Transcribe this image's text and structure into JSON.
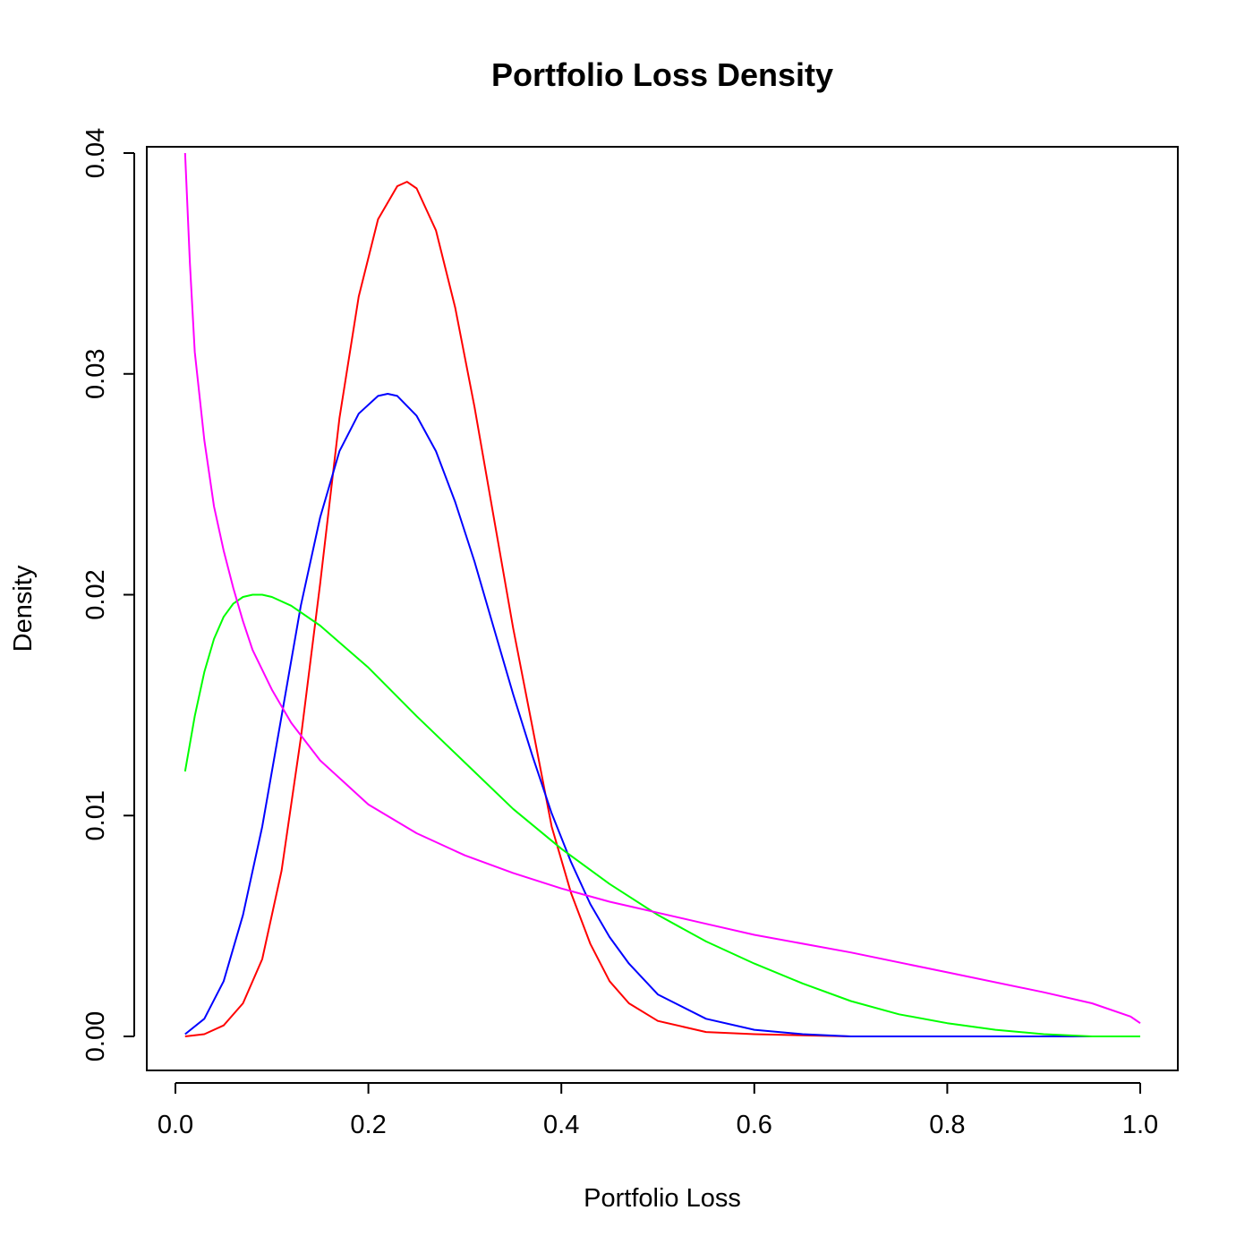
{
  "chart_data": {
    "type": "line",
    "title": "Portfolio Loss Density",
    "xlabel": "Portfolio Loss",
    "ylabel": "Density",
    "xlim": [
      0.0,
      1.0
    ],
    "ylim": [
      0.0,
      0.04
    ],
    "x_ticks": [
      "0.0",
      "0.2",
      "0.4",
      "0.6",
      "0.8",
      "1.0"
    ],
    "y_ticks": [
      "0.00",
      "0.01",
      "0.02",
      "0.03",
      "0.04"
    ],
    "grid": false,
    "legend": "none",
    "series": [
      {
        "color": "#ff0000",
        "x": [
          0.01,
          0.03,
          0.05,
          0.07,
          0.09,
          0.11,
          0.13,
          0.15,
          0.17,
          0.19,
          0.21,
          0.23,
          0.24,
          0.25,
          0.27,
          0.29,
          0.31,
          0.33,
          0.35,
          0.37,
          0.39,
          0.41,
          0.43,
          0.45,
          0.47,
          0.5,
          0.55,
          0.6,
          0.7,
          0.8,
          0.9,
          1.0
        ],
        "y": [
          0.0,
          0.0001,
          0.0005,
          0.0015,
          0.0035,
          0.0075,
          0.0135,
          0.0205,
          0.028,
          0.0335,
          0.037,
          0.0385,
          0.0387,
          0.0384,
          0.0365,
          0.033,
          0.0285,
          0.0235,
          0.0185,
          0.014,
          0.0095,
          0.0065,
          0.0042,
          0.0025,
          0.0015,
          0.0007,
          0.0002,
          0.0001,
          0.0,
          0.0,
          0.0,
          0.0
        ]
      },
      {
        "color": "#0000ff",
        "x": [
          0.01,
          0.03,
          0.05,
          0.07,
          0.09,
          0.11,
          0.13,
          0.15,
          0.17,
          0.19,
          0.21,
          0.22,
          0.23,
          0.25,
          0.27,
          0.29,
          0.31,
          0.33,
          0.35,
          0.37,
          0.39,
          0.41,
          0.43,
          0.45,
          0.47,
          0.5,
          0.55,
          0.6,
          0.65,
          0.7,
          0.8,
          0.9,
          1.0
        ],
        "y": [
          0.0001,
          0.0008,
          0.0025,
          0.0055,
          0.0095,
          0.0145,
          0.0195,
          0.0235,
          0.0265,
          0.0282,
          0.029,
          0.0291,
          0.029,
          0.0281,
          0.0265,
          0.0242,
          0.0215,
          0.0185,
          0.0155,
          0.0127,
          0.0101,
          0.0079,
          0.006,
          0.0045,
          0.0033,
          0.0019,
          0.0008,
          0.0003,
          0.0001,
          0.0,
          0.0,
          0.0,
          0.0
        ]
      },
      {
        "color": "#00ff00",
        "x": [
          0.01,
          0.02,
          0.03,
          0.04,
          0.05,
          0.06,
          0.07,
          0.08,
          0.09,
          0.1,
          0.12,
          0.15,
          0.2,
          0.25,
          0.3,
          0.35,
          0.4,
          0.45,
          0.5,
          0.55,
          0.6,
          0.65,
          0.7,
          0.75,
          0.8,
          0.85,
          0.9,
          0.95,
          1.0
        ],
        "y": [
          0.012,
          0.0145,
          0.0165,
          0.018,
          0.019,
          0.0196,
          0.0199,
          0.02,
          0.02,
          0.0199,
          0.0195,
          0.0186,
          0.0167,
          0.0145,
          0.0124,
          0.0103,
          0.0085,
          0.0069,
          0.0055,
          0.0043,
          0.0033,
          0.0024,
          0.0016,
          0.001,
          0.0006,
          0.0003,
          0.0001,
          0.0,
          0.0
        ]
      },
      {
        "color": "#ff00ff",
        "x": [
          0.01,
          0.015,
          0.02,
          0.03,
          0.04,
          0.05,
          0.06,
          0.07,
          0.08,
          0.1,
          0.12,
          0.15,
          0.2,
          0.25,
          0.3,
          0.35,
          0.4,
          0.45,
          0.5,
          0.55,
          0.6,
          0.7,
          0.8,
          0.9,
          0.95,
          0.99,
          1.0
        ],
        "y": [
          0.04,
          0.035,
          0.031,
          0.027,
          0.024,
          0.022,
          0.0203,
          0.0188,
          0.0175,
          0.0157,
          0.0142,
          0.0125,
          0.0105,
          0.0092,
          0.0082,
          0.0074,
          0.0067,
          0.0061,
          0.0056,
          0.0051,
          0.0046,
          0.0038,
          0.0029,
          0.002,
          0.0015,
          0.0009,
          0.0006
        ]
      }
    ]
  }
}
